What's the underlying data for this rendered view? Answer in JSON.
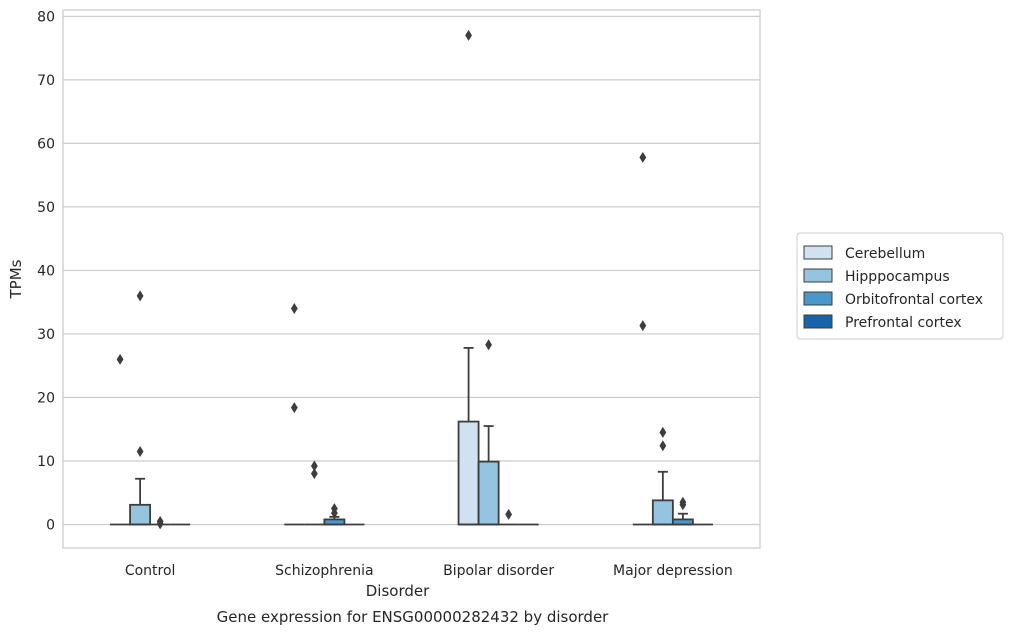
{
  "chart_data": {
    "type": "box",
    "title": "Gene expression for ENSG00000282432 by disorder",
    "xlabel": "Disorder",
    "ylabel": "TPMs",
    "ylim": [
      -3.7,
      81
    ],
    "yticks": [
      0,
      10,
      20,
      30,
      40,
      50,
      60,
      70,
      80
    ],
    "grid": true,
    "legend_position": "right",
    "categories": [
      "Control",
      "Schizophrenia",
      "Bipolar disorder",
      "Major depression"
    ],
    "series": [
      {
        "name": "Cerebellum",
        "color": "#d0e1f2",
        "boxes": [
          {
            "q1": 0,
            "median": 0,
            "q3": 0,
            "whisker_low": 0,
            "whisker_high": 0,
            "outliers": [
              26.0
            ]
          },
          {
            "q1": 0,
            "median": 0,
            "q3": 0,
            "whisker_low": 0,
            "whisker_high": 0,
            "outliers": [
              34.0,
              18.4
            ]
          },
          {
            "q1": 0,
            "median": 0,
            "q3": 16.2,
            "whisker_low": 0,
            "whisker_high": 27.8,
            "outliers": [
              77.0
            ]
          },
          {
            "q1": 0,
            "median": 0,
            "q3": 0,
            "whisker_low": 0,
            "whisker_high": 0,
            "outliers": [
              57.8,
              31.3
            ]
          }
        ]
      },
      {
        "name": "Hipppocampus",
        "color": "#94c4df",
        "boxes": [
          {
            "q1": 0,
            "median": 0,
            "q3": 3.1,
            "whisker_low": 0,
            "whisker_high": 7.2,
            "outliers": [
              36.0,
              11.5
            ]
          },
          {
            "q1": 0,
            "median": 0,
            "q3": 0,
            "whisker_low": 0,
            "whisker_high": 0,
            "outliers": [
              9.2,
              8.0
            ]
          },
          {
            "q1": 0,
            "median": 0,
            "q3": 9.9,
            "whisker_low": 0,
            "whisker_high": 15.5,
            "outliers": [
              28.3
            ]
          },
          {
            "q1": 0,
            "median": 0,
            "q3": 3.8,
            "whisker_low": 0,
            "whisker_high": 8.3,
            "outliers": [
              14.5,
              12.4
            ]
          }
        ]
      },
      {
        "name": "Orbitofrontal cortex",
        "color": "#4a98c9",
        "boxes": [
          {
            "q1": 0,
            "median": 0,
            "q3": 0,
            "whisker_low": 0,
            "whisker_high": 0,
            "outliers": [
              0.5,
              0.1
            ]
          },
          {
            "q1": 0,
            "median": 0,
            "q3": 0.8,
            "whisker_low": 0,
            "whisker_high": 1.2,
            "outliers": [
              2.5,
              1.8
            ]
          },
          {
            "q1": 0,
            "median": 0,
            "q3": 0,
            "whisker_low": 0,
            "whisker_high": 0,
            "outliers": [
              1.6
            ]
          },
          {
            "q1": 0,
            "median": 0,
            "q3": 0.8,
            "whisker_low": 0,
            "whisker_high": 1.7,
            "outliers": [
              3.5,
              3.1
            ]
          }
        ]
      },
      {
        "name": "Prefrontal cortex",
        "color": "#1764ab",
        "boxes": [
          {
            "q1": 0,
            "median": 0,
            "q3": 0,
            "whisker_low": 0,
            "whisker_high": 0,
            "outliers": []
          },
          {
            "q1": 0,
            "median": 0,
            "q3": 0,
            "whisker_low": 0,
            "whisker_high": 0,
            "outliers": []
          },
          {
            "q1": 0,
            "median": 0,
            "q3": 0,
            "whisker_low": 0,
            "whisker_high": 0,
            "outliers": []
          },
          {
            "q1": 0,
            "median": 0,
            "q3": 0,
            "whisker_low": 0,
            "whisker_high": 0,
            "outliers": []
          }
        ]
      }
    ]
  }
}
